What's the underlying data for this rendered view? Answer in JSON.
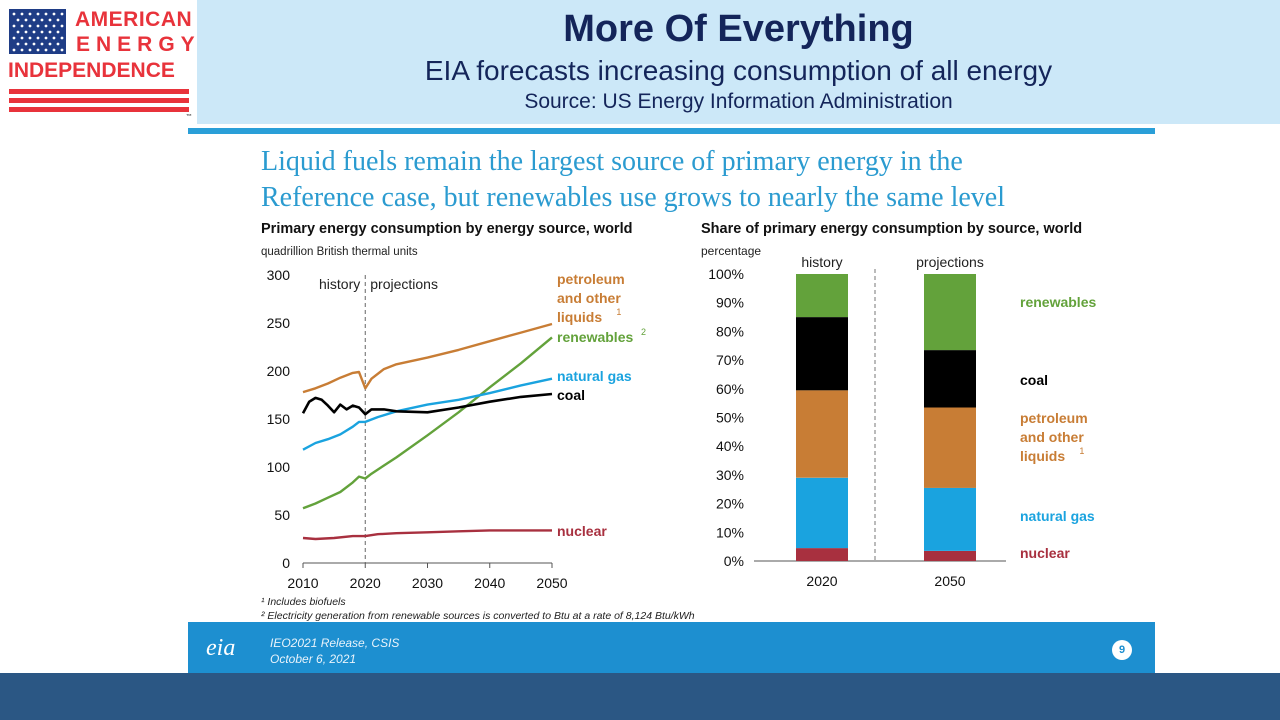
{
  "logo": {
    "line1": "AMERICAN",
    "line2": "ENERGY",
    "line3": "INDEPENDENCE",
    "tm": "™"
  },
  "header": {
    "title": "More Of Everything",
    "subtitle": "EIA forecasts increasing consumption of all energy",
    "source": "Source: US Energy Information Administration"
  },
  "slide": {
    "heading_line1": "Liquid fuels remain the largest source of primary energy in the",
    "heading_line2": "Reference case, but renewables use grows to nearly the same level",
    "footnote1": "¹ Includes biofuels",
    "footnote2": "² Electricity generation from renewable sources is converted to Btu at a rate of 8,124 Btu/kWh",
    "footer_logo": "eia",
    "footer_line1": "IEO2021 Release, CSIS",
    "footer_line2": "October 6, 2021",
    "page_number": "9"
  },
  "colors": {
    "petroleum": "#c87d35",
    "renewables": "#63a23b",
    "natural_gas": "#1aa3df",
    "coal": "#000000",
    "nuclear": "#a8303f",
    "heading": "#2b9bd0"
  },
  "chart_data": [
    {
      "type": "line",
      "title": "Primary energy consumption by energy source, world",
      "ylabel": "quadrillion British thermal units",
      "xlim": [
        2010,
        2050
      ],
      "ylim": [
        0,
        300
      ],
      "xticks": [
        "2010",
        "2020",
        "2030",
        "2040",
        "2050"
      ],
      "yticks": [
        "0",
        "50",
        "100",
        "150",
        "200",
        "250",
        "300"
      ],
      "divider_x": 2020,
      "region_labels": [
        "history",
        "projections"
      ],
      "grid": false,
      "series": [
        {
          "key": "petroleum",
          "name": "petroleum and other liquids",
          "label_lines": [
            "petroleum",
            "and other",
            "liquids"
          ],
          "sup": "1",
          "points": [
            [
              2010,
              178
            ],
            [
              2012,
              182
            ],
            [
              2014,
              187
            ],
            [
              2016,
              193
            ],
            [
              2018,
              198
            ],
            [
              2019,
              199
            ],
            [
              2020,
              182
            ],
            [
              2021,
              192
            ],
            [
              2023,
              202
            ],
            [
              2025,
              207
            ],
            [
              2030,
              214
            ],
            [
              2035,
              222
            ],
            [
              2040,
              231
            ],
            [
              2045,
              240
            ],
            [
              2050,
              249
            ]
          ]
        },
        {
          "key": "renewables",
          "name": "renewables",
          "label_lines": [
            "renewables"
          ],
          "sup": "2",
          "points": [
            [
              2010,
              57
            ],
            [
              2012,
              62
            ],
            [
              2014,
              68
            ],
            [
              2016,
              74
            ],
            [
              2018,
              84
            ],
            [
              2019,
              90
            ],
            [
              2020,
              88
            ],
            [
              2021,
              93
            ],
            [
              2025,
              110
            ],
            [
              2030,
              133
            ],
            [
              2035,
              157
            ],
            [
              2040,
              183
            ],
            [
              2045,
              208
            ],
            [
              2050,
              235
            ]
          ]
        },
        {
          "key": "natural_gas",
          "name": "natural gas",
          "label_lines": [
            "natural gas"
          ],
          "points": [
            [
              2010,
              118
            ],
            [
              2012,
              125
            ],
            [
              2014,
              129
            ],
            [
              2016,
              134
            ],
            [
              2018,
              142
            ],
            [
              2019,
              147
            ],
            [
              2020,
              147
            ],
            [
              2022,
              152
            ],
            [
              2025,
              158
            ],
            [
              2030,
              165
            ],
            [
              2035,
              170
            ],
            [
              2040,
              177
            ],
            [
              2045,
              185
            ],
            [
              2050,
              192
            ]
          ]
        },
        {
          "key": "coal",
          "name": "coal",
          "label_lines": [
            "coal"
          ],
          "points": [
            [
              2010,
              156
            ],
            [
              2011,
              168
            ],
            [
              2012,
              172
            ],
            [
              2013,
              170
            ],
            [
              2014,
              164
            ],
            [
              2015,
              157
            ],
            [
              2016,
              165
            ],
            [
              2017,
              160
            ],
            [
              2018,
              164
            ],
            [
              2019,
              162
            ],
            [
              2020,
              155
            ],
            [
              2021,
              160
            ],
            [
              2023,
              160
            ],
            [
              2025,
              158
            ],
            [
              2030,
              157
            ],
            [
              2035,
              162
            ],
            [
              2040,
              168
            ],
            [
              2045,
              173
            ],
            [
              2050,
              176
            ]
          ]
        },
        {
          "key": "nuclear",
          "name": "nuclear",
          "label_lines": [
            "nuclear"
          ],
          "points": [
            [
              2010,
              26
            ],
            [
              2012,
              25
            ],
            [
              2015,
              26
            ],
            [
              2018,
              28
            ],
            [
              2020,
              28
            ],
            [
              2022,
              30
            ],
            [
              2025,
              31
            ],
            [
              2030,
              32
            ],
            [
              2035,
              33
            ],
            [
              2040,
              34
            ],
            [
              2045,
              34
            ],
            [
              2050,
              34
            ]
          ]
        }
      ],
      "footnotes": [
        "Includes biofuels",
        "Electricity generation from renewable sources is converted to Btu at a rate of 8,124 Btu/kWh"
      ]
    },
    {
      "type": "bar",
      "stacked": true,
      "title": "Share of primary energy consumption by source, world",
      "ylabel": "percentage",
      "categories": [
        "2020",
        "2050"
      ],
      "category_groups": [
        "history",
        "projections"
      ],
      "ylim": [
        0,
        100
      ],
      "yticks": [
        "0%",
        "10%",
        "20%",
        "30%",
        "40%",
        "50%",
        "60%",
        "70%",
        "80%",
        "90%",
        "100%"
      ],
      "series": [
        {
          "key": "nuclear",
          "name": "nuclear",
          "label_lines": [
            "nuclear"
          ],
          "values": [
            4.5,
            3.5
          ]
        },
        {
          "key": "natural_gas",
          "name": "natural gas",
          "label_lines": [
            "natural gas"
          ],
          "values": [
            24.5,
            22.0
          ]
        },
        {
          "key": "petroleum",
          "name": "petroleum and other liquids",
          "label_lines": [
            "petroleum",
            "and other",
            "liquids"
          ],
          "sup": "1",
          "values": [
            30.5,
            28.0
          ]
        },
        {
          "key": "coal",
          "name": "coal",
          "label_lines": [
            "coal"
          ],
          "values": [
            25.5,
            20.0
          ]
        },
        {
          "key": "renewables",
          "name": "renewables",
          "label_lines": [
            "renewables"
          ],
          "values": [
            15.0,
            26.5
          ]
        }
      ]
    }
  ]
}
